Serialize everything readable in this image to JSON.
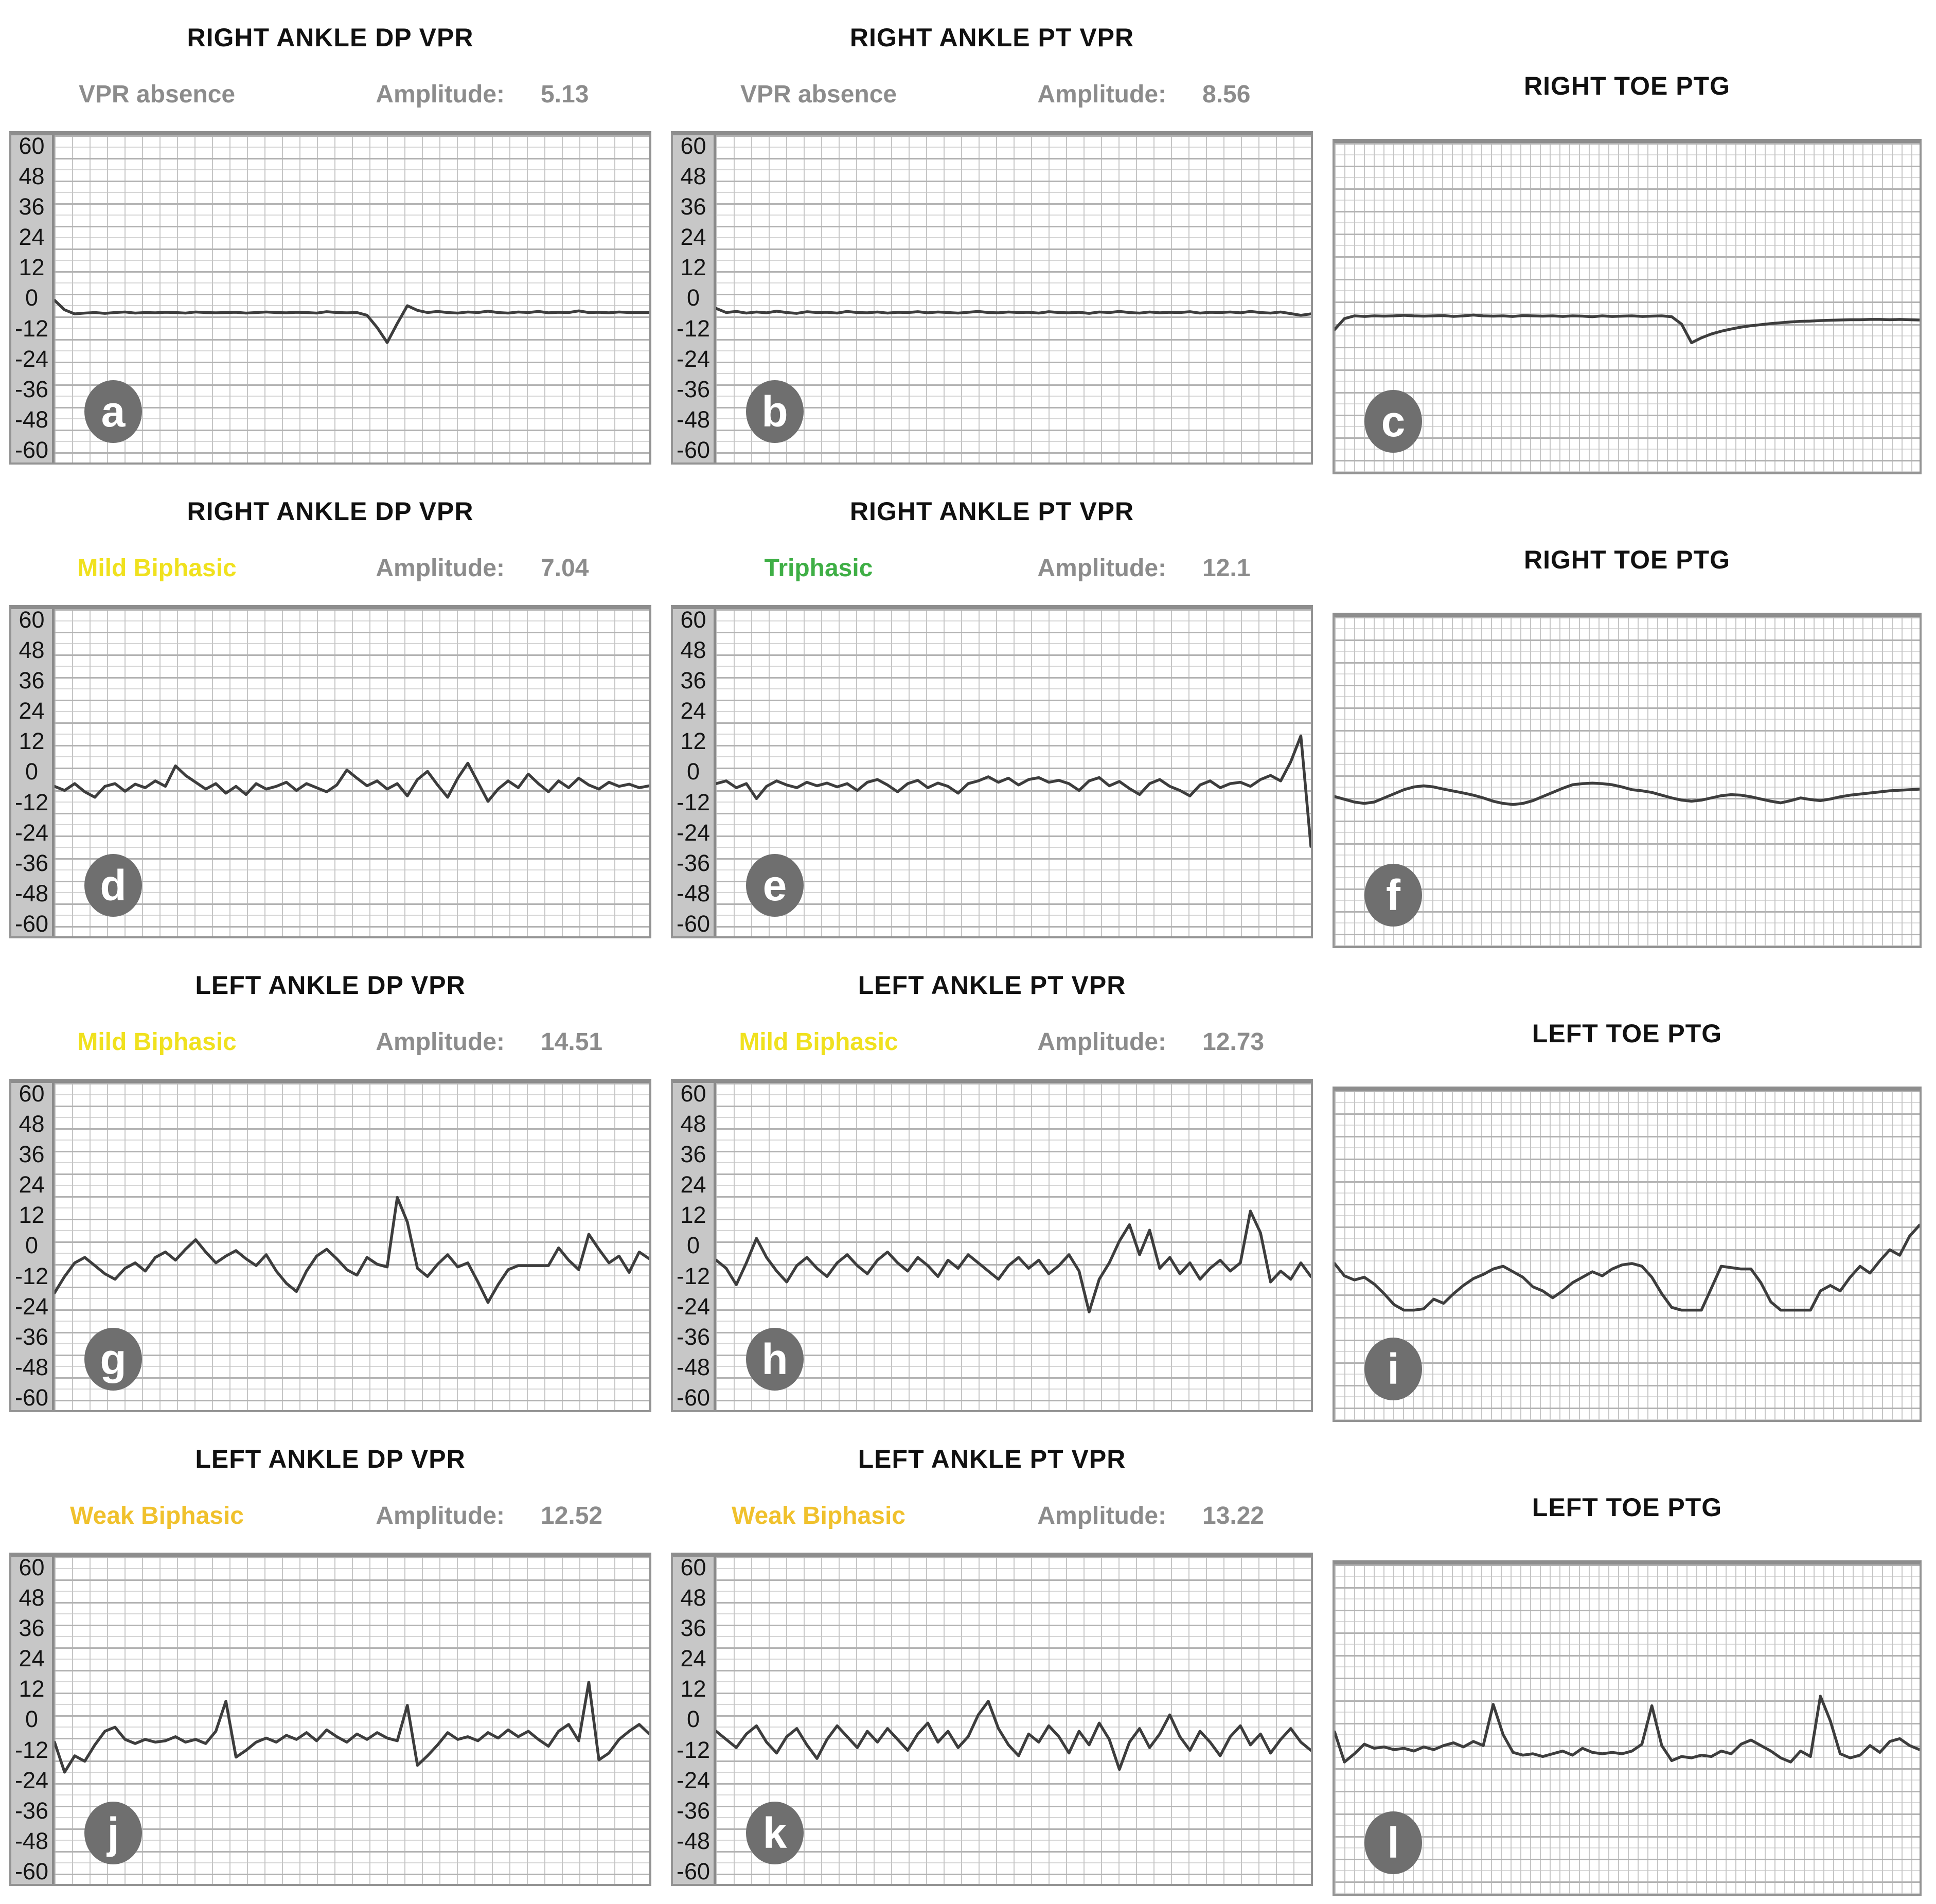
{
  "colors": {
    "title": "#111111",
    "muted_gray": "#8c8c8c",
    "yellow": "#f0e11e",
    "amber": "#f0c12d",
    "green": "#3faf46",
    "badge_bg": "#6f6f6f",
    "badge_text": "#ffffff",
    "trace": "#3d3d3d",
    "axis_strip_bg": "#c7c7c7",
    "plot_border": "#949494"
  },
  "figure": {
    "y_axis_ticks": [
      "60",
      "48",
      "36",
      "24",
      "12",
      "0",
      "-12",
      "-24",
      "-36",
      "-48",
      "-60"
    ],
    "amplitude_label": "Amplitude:",
    "panels": [
      {
        "id": "a",
        "type": "vpr",
        "title": "RIGHT ANKLE DP VPR",
        "status": "VPR absence",
        "status_color": "muted_gray",
        "amplitude": "5.13",
        "badge": "a"
      },
      {
        "id": "b",
        "type": "vpr",
        "title": "RIGHT ANKLE PT VPR",
        "status": "VPR absence",
        "status_color": "muted_gray",
        "amplitude": "8.56",
        "badge": "b"
      },
      {
        "id": "c",
        "type": "ptg",
        "title": "RIGHT TOE PTG",
        "badge": "c"
      },
      {
        "id": "d",
        "type": "vpr",
        "title": "RIGHT ANKLE DP VPR",
        "status": "Mild Biphasic",
        "status_color": "yellow",
        "amplitude": "7.04",
        "badge": "d"
      },
      {
        "id": "e",
        "type": "vpr",
        "title": "RIGHT ANKLE PT VPR",
        "status": "Triphasic",
        "status_color": "green",
        "amplitude": "12.1",
        "badge": "e"
      },
      {
        "id": "f",
        "type": "ptg",
        "title": "RIGHT TOE PTG",
        "badge": "f"
      },
      {
        "id": "g",
        "type": "vpr",
        "title": "LEFT ANKLE DP VPR",
        "status": "Mild Biphasic",
        "status_color": "yellow",
        "amplitude": "14.51",
        "badge": "g"
      },
      {
        "id": "h",
        "type": "vpr",
        "title": "LEFT ANKLE PT VPR",
        "status": "Mild Biphasic",
        "status_color": "yellow",
        "amplitude": "12.73",
        "badge": "h"
      },
      {
        "id": "i",
        "type": "ptg",
        "title": "LEFT TOE PTG",
        "badge": "i"
      },
      {
        "id": "j",
        "type": "vpr",
        "title": "LEFT ANKLE DP VPR",
        "status": "Weak Biphasic",
        "status_color": "amber",
        "amplitude": "12.52",
        "badge": "j"
      },
      {
        "id": "k",
        "type": "vpr",
        "title": "LEFT ANKLE PT VPR",
        "status": "Weak Biphasic",
        "status_color": "amber",
        "amplitude": "13.22",
        "badge": "k"
      },
      {
        "id": "l",
        "type": "ptg",
        "title": "LEFT TOE PTG",
        "badge": "l"
      }
    ]
  },
  "chart_data": [
    {
      "panel": "a",
      "type": "line",
      "title": "RIGHT ANKLE DP VPR",
      "classification": "VPR absence",
      "amplitude": 5.13,
      "ylim": [
        -60,
        60
      ],
      "y_ticks": [
        60,
        48,
        36,
        24,
        12,
        0,
        -12,
        -24,
        -36,
        -48,
        -60
      ],
      "grid": true,
      "legend": false,
      "y_values": [
        -0.5,
        -4,
        -5.5,
        -5.2,
        -5,
        -5.3,
        -5,
        -4.8,
        -5.2,
        -5,
        -5.1,
        -4.9,
        -5,
        -5.2,
        -4.8,
        -5,
        -5.1,
        -5,
        -4.9,
        -5.2,
        -5,
        -4.8,
        -5,
        -5.1,
        -4.9,
        -5,
        -5.2,
        -4.7,
        -5,
        -5.1,
        -5,
        -6,
        -10.5,
        -16,
        -9,
        -2.5,
        -4.2,
        -5,
        -4.6,
        -5,
        -5.2,
        -4.8,
        -5,
        -4.5,
        -5,
        -5.2,
        -4.8,
        -5,
        -4.6,
        -5.1,
        -4.9,
        -5,
        -4.4,
        -5,
        -4.9,
        -5.1,
        -4.8,
        -5,
        -5,
        -5
      ]
    },
    {
      "panel": "b",
      "type": "line",
      "title": "RIGHT ANKLE PT VPR",
      "classification": "VPR absence",
      "amplitude": 8.56,
      "ylim": [
        -60,
        60
      ],
      "y_ticks": [
        60,
        48,
        36,
        24,
        12,
        0,
        -12,
        -24,
        -36,
        -48,
        -60
      ],
      "grid": true,
      "legend": false,
      "y_values": [
        -3.5,
        -5,
        -4.6,
        -5.2,
        -4.8,
        -5.1,
        -4.5,
        -5,
        -5.3,
        -4.7,
        -5,
        -4.9,
        -5.2,
        -4.6,
        -5,
        -5.1,
        -4.8,
        -5.2,
        -4.9,
        -5,
        -4.7,
        -5.1,
        -4.8,
        -5,
        -5.2,
        -4.9,
        -4.6,
        -5,
        -5.1,
        -4.8,
        -5,
        -4.9,
        -5.2,
        -4.7,
        -5,
        -5.1,
        -4.9,
        -5.3,
        -4.8,
        -5,
        -4.6,
        -5,
        -5.2,
        -4.8,
        -5.1,
        -4.9,
        -5,
        -4.7,
        -5.2,
        -4.9,
        -5,
        -4.8,
        -5.1,
        -4.6,
        -5,
        -5.2,
        -4.8,
        -5.4,
        -6,
        -5.5
      ]
    },
    {
      "panel": "c",
      "type": "line",
      "title": "RIGHT TOE PTG",
      "ylim": [
        -60,
        60
      ],
      "y_ticks": [],
      "grid": true,
      "legend": false,
      "note": "no y-axis scale shown",
      "y_values": [
        -8,
        -4,
        -3,
        -3.2,
        -3,
        -3.1,
        -3,
        -2.8,
        -3,
        -3.1,
        -3,
        -2.9,
        -3.2,
        -3,
        -2.7,
        -3,
        -3.1,
        -3,
        -3.2,
        -2.9,
        -3,
        -3.1,
        -3,
        -3.2,
        -3,
        -3.1,
        -3.3,
        -3,
        -3.2,
        -3.1,
        -3,
        -3.2,
        -3.1,
        -3,
        -3.3,
        -6,
        -12.8,
        -11,
        -9.6,
        -8.6,
        -7.8,
        -7.1,
        -6.6,
        -6.2,
        -5.8,
        -5.5,
        -5.2,
        -5,
        -4.9,
        -4.7,
        -4.6,
        -4.5,
        -4.4,
        -4.4,
        -4.3,
        -4.3,
        -4.4,
        -4.3,
        -4.4,
        -4.5
      ]
    },
    {
      "panel": "d",
      "type": "line",
      "title": "RIGHT ANKLE DP VPR",
      "classification": "Mild Biphasic",
      "amplitude": 7.04,
      "ylim": [
        -60,
        60
      ],
      "y_ticks": [
        60,
        48,
        36,
        24,
        12,
        0,
        -12,
        -24,
        -36,
        -48,
        -60
      ],
      "grid": true,
      "legend": false,
      "y_values": [
        -5,
        -6.5,
        -4,
        -7,
        -9,
        -5,
        -4,
        -6.8,
        -4.2,
        -5.5,
        -3,
        -5,
        2.5,
        -1,
        -3.5,
        -6,
        -4,
        -7.5,
        -5,
        -8,
        -4,
        -6,
        -5,
        -3.5,
        -6.5,
        -4,
        -5.5,
        -7,
        -4.5,
        1,
        -2,
        -4.8,
        -3,
        -6,
        -4,
        -8.5,
        -2.5,
        0.5,
        -4.5,
        -9,
        -2,
        3.5,
        -3.5,
        -10.5,
        -6,
        -3,
        -5.5,
        -0.5,
        -4,
        -7,
        -3,
        -5.5,
        -2,
        -4.5,
        -6,
        -3.5,
        -5,
        -4.2,
        -5.5,
        -4.8
      ]
    },
    {
      "panel": "e",
      "type": "line",
      "title": "RIGHT ANKLE PT VPR",
      "classification": "Triphasic",
      "amplitude": 12.1,
      "ylim": [
        -60,
        60
      ],
      "y_ticks": [
        60,
        48,
        36,
        24,
        12,
        0,
        -12,
        -24,
        -36,
        -48,
        -60
      ],
      "grid": true,
      "legend": false,
      "y_values": [
        -4,
        -3,
        -5.5,
        -4,
        -9.5,
        -5,
        -3,
        -4.5,
        -5.5,
        -3.5,
        -4.8,
        -3.8,
        -5.2,
        -4,
        -6.5,
        -3.5,
        -2.5,
        -4.5,
        -7,
        -4,
        -2.8,
        -5.5,
        -3.8,
        -5,
        -7.5,
        -4,
        -3,
        -1.5,
        -3.5,
        -2,
        -4.5,
        -2.5,
        -1.8,
        -3.5,
        -2.8,
        -4,
        -6.5,
        -3,
        -1.8,
        -4.8,
        -3.2,
        -5.8,
        -8,
        -4,
        -2.5,
        -5,
        -6.5,
        -8.5,
        -4.5,
        -3,
        -5.5,
        -4,
        -3.5,
        -5,
        -2.5,
        -1,
        -3,
        4,
        13.5,
        -27
      ]
    },
    {
      "panel": "f",
      "type": "line",
      "title": "RIGHT TOE PTG",
      "ylim": [
        -60,
        60
      ],
      "y_ticks": [],
      "grid": true,
      "legend": false,
      "note": "no y-axis scale shown",
      "y_values": [
        -5.5,
        -6.5,
        -7.5,
        -8,
        -7.5,
        -6,
        -4.5,
        -3,
        -2,
        -1.6,
        -2,
        -2.8,
        -3.5,
        -4.2,
        -5,
        -6,
        -7.2,
        -8,
        -8.4,
        -8,
        -7,
        -5.5,
        -4,
        -2.5,
        -1.2,
        -0.8,
        -0.6,
        -0.8,
        -1.2,
        -2,
        -3,
        -3.4,
        -4,
        -5,
        -6,
        -6.8,
        -7.2,
        -6.8,
        -6,
        -5.2,
        -4.8,
        -5,
        -5.6,
        -6.4,
        -7.2,
        -7.8,
        -7,
        -6,
        -6.6,
        -7,
        -6.4,
        -5.6,
        -5,
        -4.6,
        -4.2,
        -3.8,
        -3.4,
        -3.2,
        -3,
        -2.8
      ]
    },
    {
      "panel": "g",
      "type": "line",
      "title": "LEFT ANKLE DP VPR",
      "classification": "Mild Biphasic",
      "amplitude": 14.51,
      "ylim": [
        -60,
        60
      ],
      "y_ticks": [
        60,
        48,
        36,
        24,
        12,
        0,
        -12,
        -24,
        -36,
        -48,
        -60
      ],
      "grid": true,
      "legend": false,
      "y_values": [
        -17,
        -11,
        -6,
        -4,
        -7,
        -10,
        -12,
        -8,
        -6,
        -9,
        -4,
        -2,
        -5,
        -1,
        2.5,
        -2,
        -6,
        -3.5,
        -1.5,
        -4.5,
        -7,
        -3,
        -9,
        -13.5,
        -16.5,
        -9,
        -3.5,
        -1,
        -4.5,
        -8.5,
        -10.5,
        -4,
        -6.5,
        -7.5,
        18,
        9,
        -8,
        -11,
        -6.5,
        -3,
        -7.5,
        -6,
        -13,
        -20.5,
        -14,
        -8.5,
        -7,
        -7,
        -7,
        -7,
        -0.5,
        -5,
        -8.5,
        4.5,
        -1,
        -6,
        -3.5,
        -9.5,
        -2,
        -4.5
      ]
    },
    {
      "panel": "h",
      "type": "line",
      "title": "LEFT ANKLE PT VPR",
      "classification": "Mild Biphasic",
      "amplitude": 12.73,
      "ylim": [
        -60,
        60
      ],
      "y_ticks": [
        60,
        48,
        36,
        24,
        12,
        0,
        -12,
        -24,
        -36,
        -48,
        -60
      ],
      "grid": true,
      "legend": false,
      "y_values": [
        -5,
        -8,
        -14,
        -6,
        3,
        -4,
        -9,
        -13,
        -7,
        -4,
        -8,
        -11,
        -6,
        -3,
        -7,
        -10,
        -5,
        -2,
        -6,
        -9,
        -4,
        -7,
        -11,
        -5,
        -8,
        -3,
        -6,
        -9,
        -12,
        -7,
        -4,
        -8,
        -5,
        -10,
        -7,
        -3,
        -9,
        -24,
        -12,
        -6,
        2,
        8,
        -3,
        6,
        -8,
        -4,
        -10,
        -6,
        -12,
        -8,
        -5,
        -9,
        -6,
        13,
        5,
        -13,
        -9,
        -12,
        -6,
        -11
      ]
    },
    {
      "panel": "i",
      "type": "line",
      "title": "LEFT TOE PTG",
      "ylim": [
        -60,
        60
      ],
      "y_ticks": [],
      "grid": true,
      "legend": false,
      "note": "no y-axis scale shown",
      "y_values": [
        -3,
        -7.5,
        -9,
        -8,
        -10.5,
        -14,
        -18,
        -20,
        -20,
        -19.5,
        -16,
        -17.5,
        -14,
        -11,
        -8.5,
        -7,
        -5,
        -4,
        -6,
        -8,
        -11.5,
        -13,
        -15.5,
        -13,
        -10,
        -8,
        -6,
        -7.5,
        -5,
        -3.5,
        -3,
        -4,
        -8,
        -14,
        -19,
        -20,
        -20,
        -20,
        -12,
        -4,
        -4.5,
        -5,
        -5,
        -10,
        -17,
        -20,
        -20,
        -20,
        -20,
        -13,
        -11,
        -13,
        -8,
        -4,
        -6.5,
        -2,
        2,
        0,
        7,
        11
      ]
    },
    {
      "panel": "j",
      "type": "line",
      "title": "LEFT ANKLE DP VPR",
      "classification": "Weak Biphasic",
      "amplitude": 12.52,
      "ylim": [
        -60,
        60
      ],
      "y_ticks": [
        60,
        48,
        36,
        24,
        12,
        0,
        -12,
        -24,
        -36,
        -48,
        -60
      ],
      "grid": true,
      "legend": false,
      "y_values": [
        -8,
        -19,
        -13,
        -15,
        -9,
        -4,
        -2.5,
        -7,
        -8.5,
        -7,
        -8,
        -7.5,
        -6,
        -8,
        -7,
        -8.5,
        -4,
        7,
        -13.5,
        -11,
        -8,
        -6.5,
        -8,
        -5.5,
        -7,
        -4.5,
        -7.5,
        -3.5,
        -6,
        -8,
        -5,
        -7,
        -4.5,
        -6.5,
        -7.5,
        5.5,
        -16.5,
        -13,
        -9,
        -4.5,
        -7,
        -6,
        -7.5,
        -4.5,
        -6.5,
        -3.5,
        -6,
        -4,
        -7,
        -9.5,
        -4,
        -1.5,
        -7.5,
        14,
        -14.5,
        -12,
        -7,
        -4,
        -1.5,
        -5
      ]
    },
    {
      "panel": "k",
      "type": "line",
      "title": "LEFT ANKLE PT VPR",
      "classification": "Weak Biphasic",
      "amplitude": 13.22,
      "ylim": [
        -60,
        60
      ],
      "y_ticks": [
        60,
        48,
        36,
        24,
        12,
        0,
        -12,
        -24,
        -36,
        -48,
        -60
      ],
      "grid": true,
      "legend": false,
      "y_values": [
        -4,
        -7,
        -10,
        -5,
        -2,
        -8,
        -12,
        -6,
        -3,
        -9,
        -14,
        -7,
        -2,
        -6,
        -10,
        -4,
        -8,
        -3,
        -7,
        -11,
        -5,
        -1,
        -8,
        -4,
        -10,
        -6,
        2,
        7,
        -3,
        -9,
        -13,
        -5,
        -8,
        -2,
        -6,
        -12,
        -4,
        -9,
        -1,
        -7,
        -18,
        -8,
        -3,
        -10,
        -5,
        2,
        -6,
        -11,
        -4,
        -8,
        -13,
        -6,
        -2,
        -9,
        -5,
        -12,
        -7,
        -3,
        -8,
        -11
      ]
    },
    {
      "panel": "l",
      "type": "line",
      "title": "LEFT TOE PTG",
      "ylim": [
        -60,
        60
      ],
      "y_ticks": [],
      "grid": true,
      "legend": false,
      "note": "no y-axis scale shown",
      "y_values": [
        -1,
        -12,
        -9,
        -5.5,
        -7,
        -6.5,
        -7.5,
        -7,
        -8,
        -6.5,
        -7.5,
        -6,
        -5,
        -6.5,
        -4.5,
        -6,
        9,
        -2,
        -8.5,
        -9.5,
        -9,
        -10,
        -9,
        -8,
        -9.5,
        -7,
        -8.5,
        -9,
        -8.5,
        -9,
        -8,
        -5.5,
        8.5,
        -6,
        -11.5,
        -10,
        -10.5,
        -9.5,
        -10,
        -8,
        -9,
        -5.5,
        -4,
        -6,
        -8,
        -10.5,
        -12,
        -8,
        -10,
        12,
        3,
        -9,
        -10.5,
        -9.5,
        -6,
        -8.5,
        -4.5,
        -3.5,
        -6,
        -7.5
      ]
    }
  ]
}
